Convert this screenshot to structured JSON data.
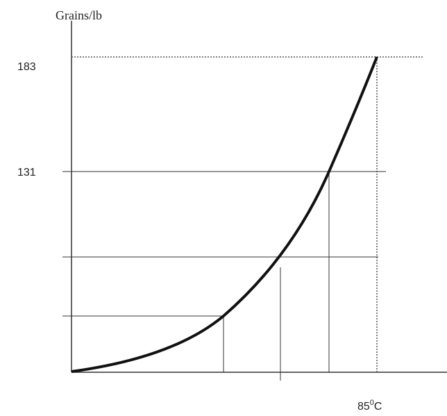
{
  "y_axis": {
    "title": "Grains/lb",
    "labels": [
      "183",
      "131"
    ]
  },
  "x_axis": {
    "label": {
      "number": "85",
      "superscript": "0",
      "unit": "C"
    }
  }
}
